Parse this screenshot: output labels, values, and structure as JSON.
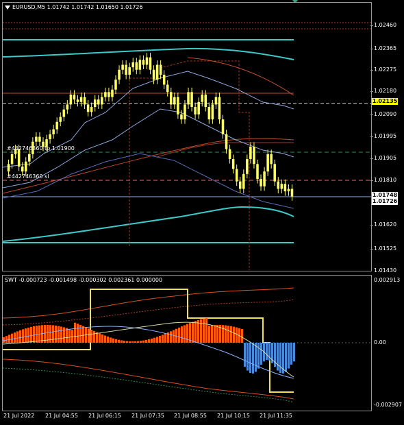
{
  "chart_title": "EURUSD,M5  1.01742 1.01742 1.01650 1.01726",
  "order_labels": {
    "tp": "#442746360 tp 1.01900",
    "sl": "#442746360 sl"
  },
  "indicator_title": "SWT -0.000723 -0.001498 -0.000302 0.002361 0.000000",
  "main_axis": [
    "1.02460",
    "1.02365",
    "1.02275",
    "1.02180",
    "1.02090",
    "1.01995",
    "1.01905",
    "1.01810",
    "1.01620",
    "1.01525",
    "1.01430"
  ],
  "price_tags": {
    "level": "1.02135",
    "bid": "1.01726",
    "ask": "1.01748"
  },
  "sub_axis": [
    "0.002913",
    "0.00",
    "-0.002907"
  ],
  "time_axis": [
    "21 Jul 2022",
    "21 Jul 04:55",
    "21 Jul 06:15",
    "21 Jul 07:35",
    "21 Jul 08:55",
    "21 Jul 10:15",
    "21 Jul 11:35"
  ],
  "colors": {
    "background": "#000000",
    "candle": "#ffff66",
    "band_outer": "#3ec8c8",
    "band_mid": "#8fa8e0",
    "trend": "#c04a2a",
    "histogram_pos": "#ff5a10",
    "histogram_neg": "#4a8ad8",
    "level_line": "#ff6060",
    "tp_line": "#2e8b57"
  },
  "chart_data": {
    "type": "candlestick",
    "symbol": "EURUSD",
    "timeframe": "M5",
    "ohlc_last": {
      "open": 1.01742,
      "high": 1.01742,
      "low": 1.0165,
      "close": 1.01726
    },
    "y_range": [
      1.0143,
      1.0251
    ],
    "close_path": [
      1.0186,
      1.019,
      1.0192,
      1.0185,
      1.0183,
      1.0187,
      1.019,
      1.0195,
      1.0197,
      1.0195,
      1.0193,
      1.0196,
      1.0198,
      1.02,
      1.0203,
      1.0205,
      1.0208,
      1.021,
      1.0214,
      1.0212,
      1.0211,
      1.0213,
      1.021,
      1.0207,
      1.0209,
      1.0212,
      1.021,
      1.0213,
      1.0215,
      1.0213,
      1.0216,
      1.022,
      1.0224,
      1.0226,
      1.0222,
      1.0225,
      1.0227,
      1.0224,
      1.0228,
      1.0226,
      1.0229,
      1.0224,
      1.022,
      1.0226,
      1.0222,
      1.0218,
      1.0215,
      1.021,
      1.0213,
      1.0206,
      1.0204,
      1.021,
      1.0215,
      1.0209,
      1.0206,
      1.0211,
      1.0214,
      1.0209,
      1.0204,
      1.021,
      1.0213,
      1.0204,
      1.0198,
      1.0192,
      1.0188,
      1.0184,
      1.0179,
      1.0176,
      1.0182,
      1.0188,
      1.0193,
      1.0186,
      1.018,
      1.0177,
      1.0183,
      1.019,
      1.0186,
      1.0179,
      1.0176,
      1.0178,
      1.0175,
      1.0176,
      1.0173
    ]
  }
}
